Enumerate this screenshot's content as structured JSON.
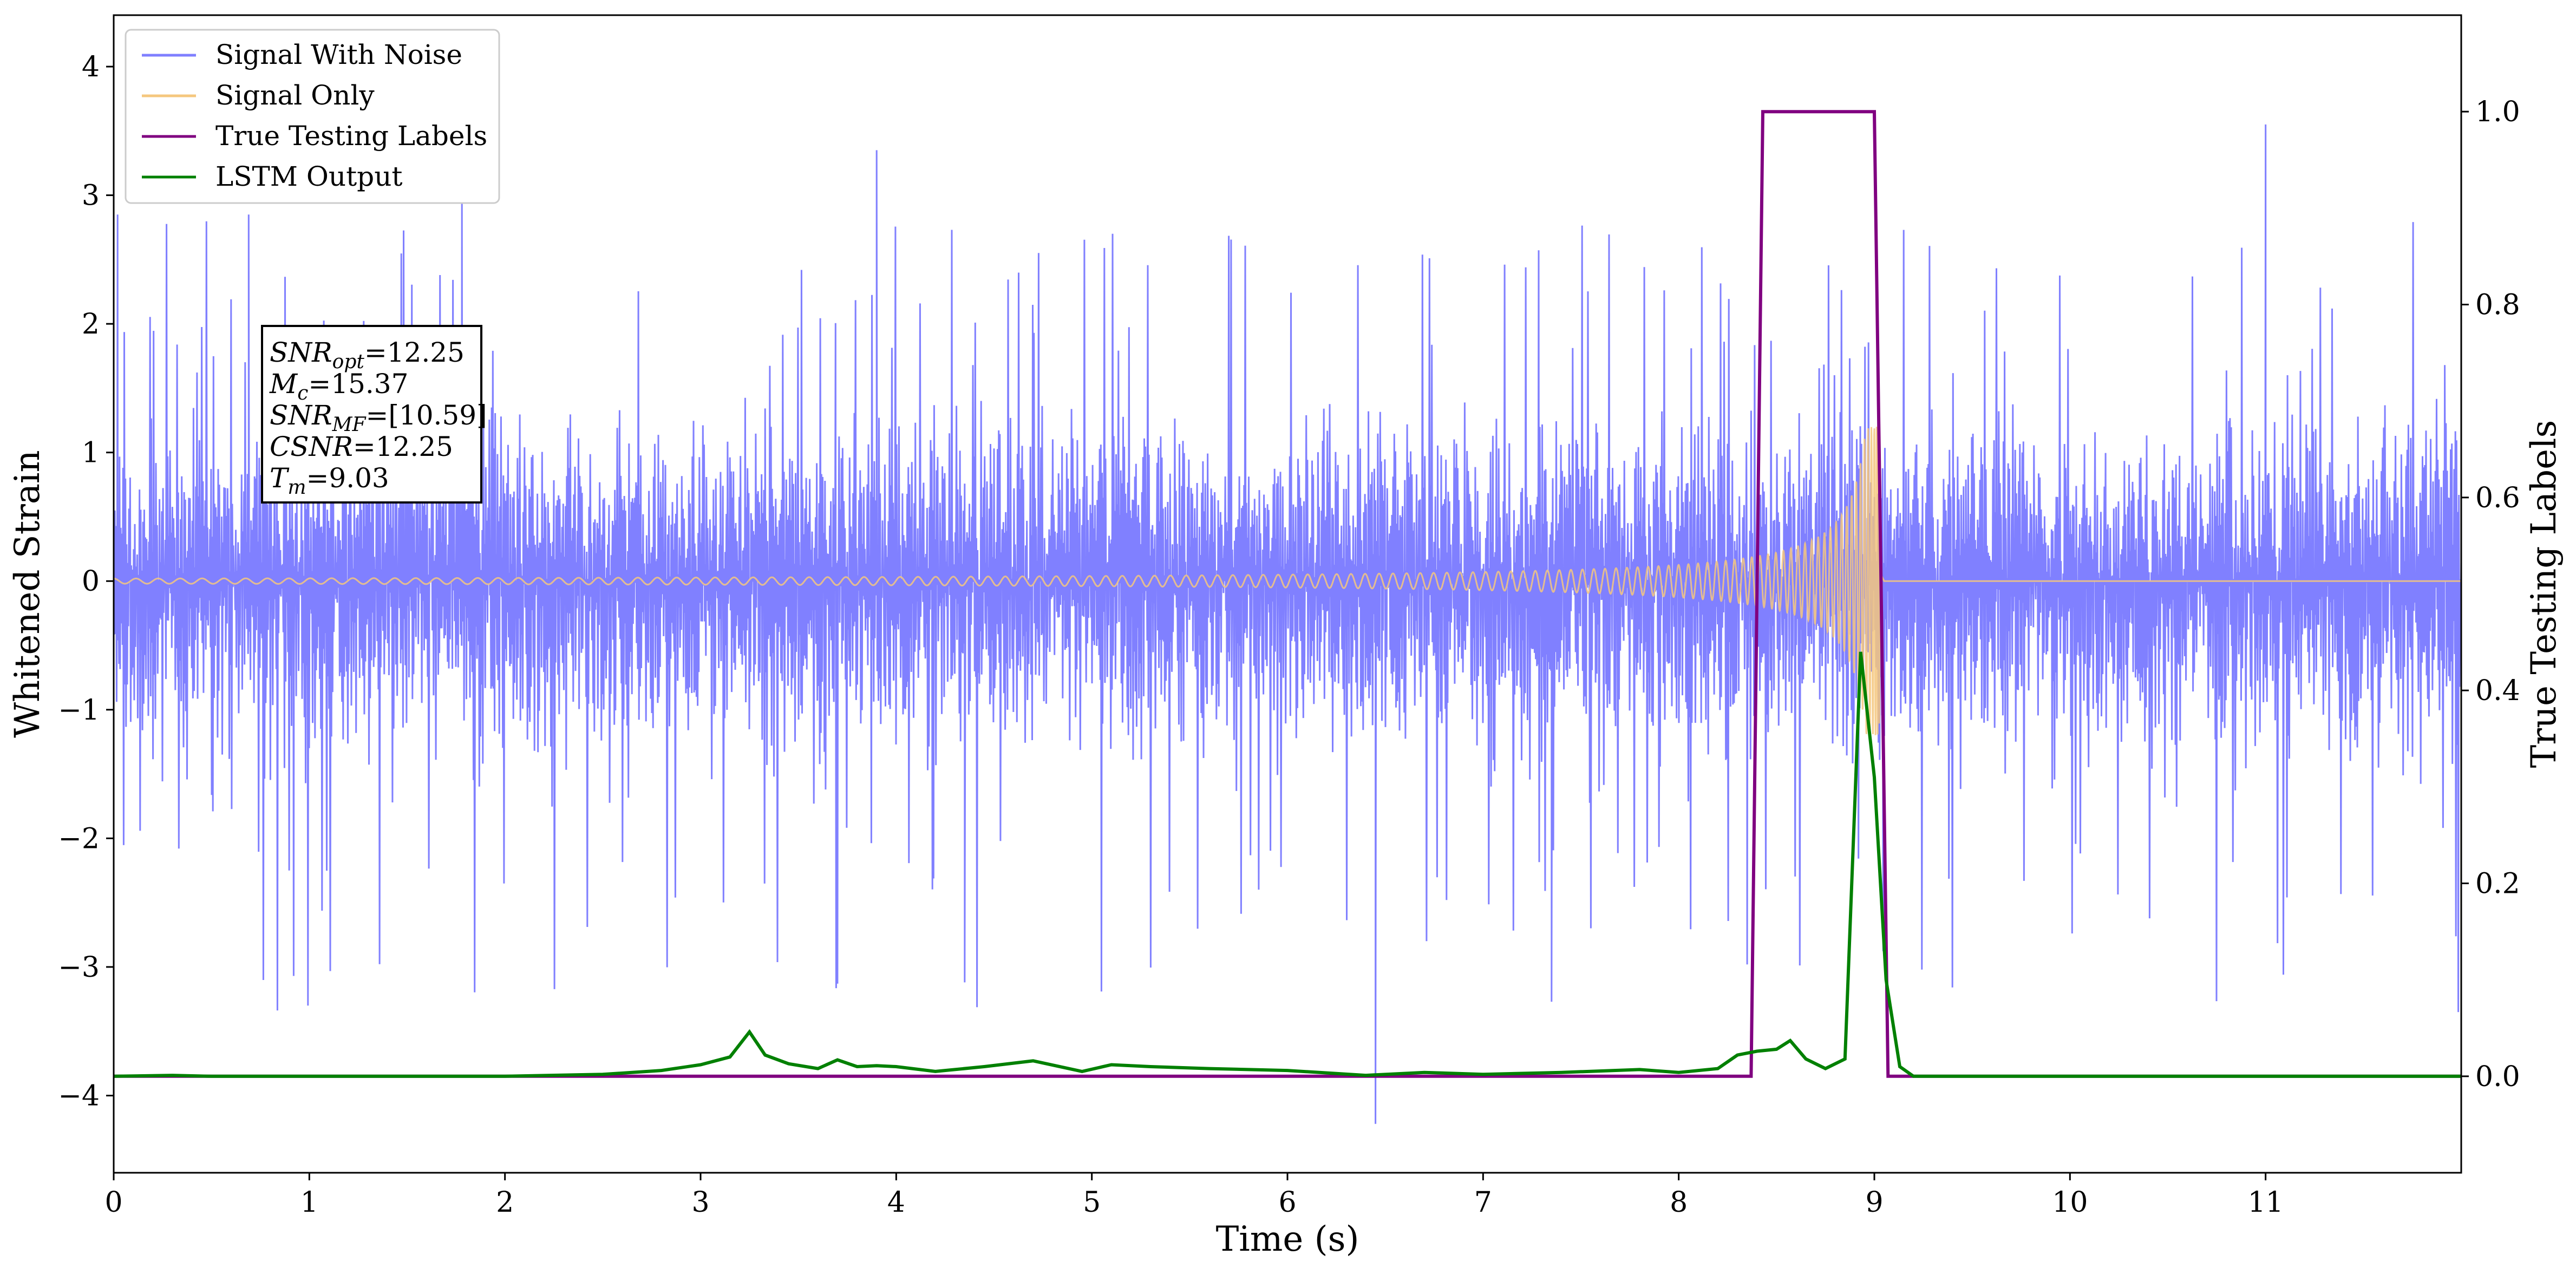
{
  "chart_data": {
    "type": "line",
    "xlabel": "Time (s)",
    "ylabel_left": "Whitened Strain",
    "ylabel_right": "True Testing Labels",
    "xlim": [
      0,
      12
    ],
    "ylim_left": [
      -4.6,
      4.4
    ],
    "ylim_right": [
      -0.1,
      1.1
    ],
    "x_ticks": [
      0,
      1,
      2,
      3,
      4,
      5,
      6,
      7,
      8,
      9,
      10,
      11
    ],
    "x_tick_labels": [
      "0",
      "1",
      "2",
      "3",
      "4",
      "5",
      "6",
      "7",
      "8",
      "9",
      "10",
      "11"
    ],
    "y_left_ticks": [
      -4,
      -3,
      -2,
      -1,
      0,
      1,
      2,
      3,
      4
    ],
    "y_left_tick_labels": [
      "−4",
      "−3",
      "−2",
      "−1",
      "0",
      "1",
      "2",
      "3",
      "4"
    ],
    "y_right_ticks": [
      0.0,
      0.2,
      0.4,
      0.6,
      0.8,
      1.0
    ],
    "y_right_tick_labels": [
      "0.0",
      "0.2",
      "0.4",
      "0.6",
      "0.8",
      "1.0"
    ],
    "grid": false,
    "legend_position": "upper-left",
    "colors": {
      "noise": "#8080ff",
      "signal": "#f5c77e",
      "labels": "#800080",
      "lstm": "#008000"
    },
    "series": [
      {
        "name": "Signal With Noise",
        "axis": "left",
        "style": "noise-band",
        "band": {
          "x_start": 0,
          "x_end": 12,
          "core": [
            -1.05,
            1.05
          ],
          "spike_max": 3.55,
          "spike_min": -4.22
        },
        "peaks": [
          {
            "x": 0.02,
            "y": 2.85
          },
          {
            "x": 0.69,
            "y": 2.85
          },
          {
            "x": 1.78,
            "y": 2.99
          },
          {
            "x": 3.9,
            "y": 3.35
          },
          {
            "x": 6.45,
            "y": -4.22
          },
          {
            "x": 11.0,
            "y": 3.55
          },
          {
            "x": 0.92,
            "y": -3.07
          },
          {
            "x": 3.7,
            "y": -3.13
          },
          {
            "x": 4.35,
            "y": -3.12
          },
          {
            "x": 7.35,
            "y": -3.27
          },
          {
            "x": 8.35,
            "y": -2.98
          }
        ]
      },
      {
        "name": "Signal Only",
        "axis": "left",
        "style": "chirp",
        "merger_time": 9.03,
        "amplitude_start": 0.02,
        "amplitude_merger": 1.2,
        "post_merger_value": 0.0
      },
      {
        "name": "True Testing Labels",
        "axis": "right",
        "x": [
          0,
          8.37,
          8.43,
          9.0,
          9.07,
          12
        ],
        "values": [
          0.0,
          0.0,
          1.0,
          1.0,
          0.0,
          0.0
        ]
      },
      {
        "name": "LSTM Output",
        "axis": "right",
        "x": [
          0,
          0.3,
          0.5,
          1.0,
          2.0,
          2.5,
          2.8,
          3.0,
          3.15,
          3.25,
          3.33,
          3.45,
          3.6,
          3.7,
          3.8,
          3.9,
          4.0,
          4.2,
          4.45,
          4.7,
          4.95,
          5.1,
          5.3,
          5.6,
          6.0,
          6.4,
          6.7,
          7.0,
          7.4,
          7.8,
          8.0,
          8.2,
          8.3,
          8.4,
          8.5,
          8.57,
          8.65,
          8.75,
          8.85,
          8.93,
          9.0,
          9.06,
          9.13,
          9.2,
          9.3,
          10.0,
          11.0,
          12.0
        ],
        "values": [
          0.0,
          0.001,
          0.0,
          0.0,
          0.0,
          0.002,
          0.006,
          0.012,
          0.02,
          0.046,
          0.022,
          0.013,
          0.008,
          0.017,
          0.01,
          0.011,
          0.01,
          0.005,
          0.01,
          0.016,
          0.005,
          0.012,
          0.01,
          0.008,
          0.006,
          0.001,
          0.004,
          0.002,
          0.004,
          0.007,
          0.004,
          0.008,
          0.022,
          0.026,
          0.028,
          0.037,
          0.018,
          0.008,
          0.018,
          0.44,
          0.31,
          0.1,
          0.01,
          0.0,
          0.0,
          0.0,
          0.0,
          0.0
        ]
      }
    ],
    "annotation_lines": [
      "SNR_opt=12.25",
      "M_c=15.37",
      "SNR_MF=[10.59]",
      "CSNR=12.25",
      "T_m=9.03"
    ]
  }
}
